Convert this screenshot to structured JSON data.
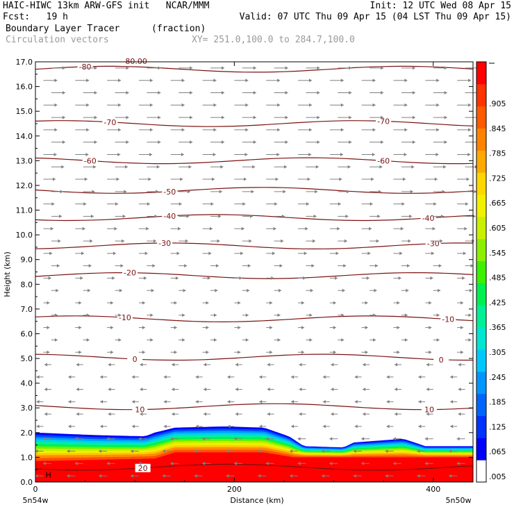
{
  "header": {
    "line1_left": "HAIC-HIWC 13km ARW-GFS init   NCAR/MMM",
    "line1_right": "Init: 12 UTC Wed 08 Apr 15",
    "line2_left": "Fcst:   19 h",
    "line2_right": "Valid: 07 UTC Thu 09 Apr 15 (04 LST Thu 09 Apr 15)",
    "field1_name": "Boundary Layer Tracer",
    "field1_units": "(fraction)",
    "field2_name": "Circulation vectors",
    "xy_range": "XY= 251.0,100.0 to 284.7,100.0"
  },
  "axes": {
    "ylabel": "Height (km)",
    "xlabel": "Distance (km)",
    "x_left_label": "5n54w",
    "x_right_label": "5n50w"
  },
  "colors": {
    "contour": "#7a1010",
    "vector": "#808080",
    "colorbar": [
      "#ffffff",
      "#0000ff",
      "#0032ff",
      "#0064ff",
      "#0096ff",
      "#00c8ff",
      "#00e6d2",
      "#00f096",
      "#00f050",
      "#3cf000",
      "#8cf000",
      "#c8f000",
      "#f0f000",
      "#ffd700",
      "#ffaa00",
      "#ff8200",
      "#ff5a00",
      "#ff3200",
      "#ff0000"
    ]
  },
  "chart_data": {
    "type": "cross-section",
    "title": "Boundary Layer Tracer",
    "xlabel": "Distance (km)",
    "ylabel": "Height (km)",
    "xlim": [
      0,
      440
    ],
    "ylim": [
      0,
      17
    ],
    "x_ticks": [
      0,
      200,
      400
    ],
    "y_ticks": [
      "0.0",
      "1.0",
      "2.0",
      "3.0",
      "4.0",
      "5.0",
      "6.0",
      "7.0",
      "8.0",
      "9.0",
      "10.0",
      "11.0",
      "12.0",
      "13.0",
      "14.0",
      "15.0",
      "16.0",
      "17.0"
    ],
    "colorbar_labels": [
      ".005",
      ".065",
      ".125",
      ".185",
      ".245",
      ".305",
      ".365",
      ".425",
      ".485",
      ".545",
      ".605",
      ".665",
      ".725",
      ".785",
      ".845",
      ".905"
    ],
    "tracer_top_km": [
      {
        "x": 0,
        "y": 2.0
      },
      {
        "x": 60,
        "y": 1.9
      },
      {
        "x": 110,
        "y": 1.85
      },
      {
        "x": 120,
        "y": 2.0
      },
      {
        "x": 140,
        "y": 2.2
      },
      {
        "x": 190,
        "y": 2.25
      },
      {
        "x": 230,
        "y": 2.2
      },
      {
        "x": 255,
        "y": 1.85
      },
      {
        "x": 270,
        "y": 1.45
      },
      {
        "x": 310,
        "y": 1.4
      },
      {
        "x": 320,
        "y": 1.6
      },
      {
        "x": 370,
        "y": 1.75
      },
      {
        "x": 385,
        "y": 1.55
      },
      {
        "x": 392,
        "y": 1.45
      },
      {
        "x": 440,
        "y": 1.45
      }
    ],
    "red_top_km": [
      {
        "x": 0,
        "y": 0.85
      },
      {
        "x": 120,
        "y": 0.95
      },
      {
        "x": 140,
        "y": 1.2
      },
      {
        "x": 230,
        "y": 1.2
      },
      {
        "x": 260,
        "y": 1.0
      },
      {
        "x": 440,
        "y": 1.0
      }
    ],
    "contours": [
      {
        "label": "-80",
        "y_km": 16.7,
        "label_x": [
          50
        ]
      },
      {
        "label": "-70",
        "y_km": 14.5,
        "label_x": [
          75,
          350
        ]
      },
      {
        "label": "-60",
        "y_km": 13.0,
        "label_x": [
          55,
          350
        ]
      },
      {
        "label": "-50",
        "y_km": 11.8,
        "label_x": [
          135
        ]
      },
      {
        "label": "-40",
        "y_km": 10.7,
        "label_x": [
          135,
          395
        ]
      },
      {
        "label": "-30",
        "y_km": 9.55,
        "label_x": [
          130,
          400
        ]
      },
      {
        "label": "-20",
        "y_km": 8.35,
        "label_x": [
          95
        ]
      },
      {
        "label": "-10",
        "y_km": 6.6,
        "label_x": [
          90,
          415
        ]
      },
      {
        "label": "0",
        "y_km": 5.05,
        "label_x": [
          100,
          408
        ]
      },
      {
        "label": "10",
        "y_km": 3.05,
        "label_x": [
          105,
          396
        ]
      },
      {
        "label": "20",
        "y_km": 0.6,
        "label_x": [
          108
        ]
      }
    ],
    "extra_contour_labels": [
      {
        "label": "-80.00",
        "x": 100,
        "y_km": 17.0
      }
    ],
    "extra_marks": [
      {
        "label": "H",
        "x": 13,
        "y_km": 0.3
      }
    ]
  }
}
